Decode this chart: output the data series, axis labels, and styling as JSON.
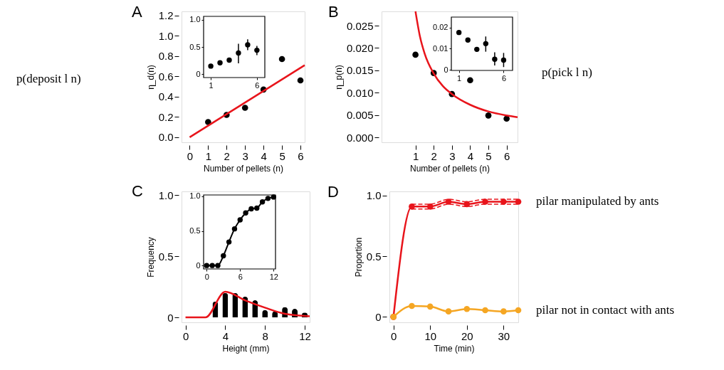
{
  "chart_data": [
    {
      "type": "scatter",
      "title": "A",
      "xlabel": "Number of pellets (n)",
      "ylabel": "η_d(n)",
      "xlim": [
        -0.44,
        6.23
      ],
      "ylim": [
        -0.05,
        1.24
      ],
      "xticks": [
        0,
        1,
        2,
        3,
        4,
        5,
        6
      ],
      "yticks": [
        {
          "value": 0,
          "label": "0.0"
        },
        0.2,
        0.4,
        0.6,
        0.8,
        {
          "value": 1,
          "label": "1.0"
        },
        1.2
      ],
      "annotations": [
        "p(deposit l n)"
      ],
      "series": [
        {
          "type": "scatter",
          "color": "#000000",
          "marker": "circle",
          "x": [
            1,
            2,
            3,
            4,
            5,
            6
          ],
          "values": [
            0.15,
            0.22,
            0.29,
            0.47,
            0.77,
            0.56
          ]
        },
        {
          "type": "line",
          "color": "#e8141b",
          "x": [
            0,
            6.23
          ],
          "values": [
            0,
            0.71
          ]
        }
      ]
    },
    {
      "type": "scatter",
      "xlim": [
        0.22,
        6.86
      ],
      "ylim": [
        -0.06,
        1.06
      ],
      "xticks": [
        1,
        6
      ],
      "yticks": [
        0,
        0.5,
        {
          "value": 1,
          "label": "1.0"
        }
      ],
      "series": [
        {
          "type": "scatter",
          "color": "#000000",
          "marker": "circle",
          "x": [
            1,
            2,
            3,
            4,
            5,
            6
          ],
          "values": [
            0.15,
            0.21,
            0.26,
            0.39,
            0.54,
            0.44
          ],
          "errors": [
            null,
            0.04,
            null,
            [
              0.2,
              0.56
            ],
            [
              0.44,
              0.64
            ],
            [
              0.35,
              0.52
            ]
          ]
        }
      ]
    },
    {
      "type": "scatter",
      "title": "B",
      "xlabel": "Number of pellets (n)",
      "ylabel": "η_p(n)",
      "xlim": [
        -0.86,
        6.6
      ],
      "ylim": [
        -0.0011,
        0.0282
      ],
      "xticks": [
        1,
        2,
        3,
        4,
        5,
        6
      ],
      "yticks": [
        {
          "value": 0,
          "label": "0.000"
        },
        {
          "value": 0.005,
          "label": "0.005"
        },
        {
          "value": 0.01,
          "label": "0.010"
        },
        {
          "value": 0.015,
          "label": "0.015"
        },
        {
          "value": 0.02,
          "label": "0.020"
        },
        {
          "value": 0.025,
          "label": "0.025"
        }
      ],
      "annotations": [
        "p(pick l n)"
      ],
      "series": [
        {
          "type": "scatter",
          "color": "#000000",
          "marker": "circle",
          "x": [
            1,
            2,
            3,
            4,
            5,
            6
          ],
          "values": [
            0.0185,
            0.0144,
            0.0097,
            0.0128,
            0.0049,
            0.0042
          ]
        },
        {
          "type": "line",
          "color": "#e8141b",
          "x": [
            1.0,
            1.25,
            1.5,
            2,
            2.5,
            3,
            4,
            5,
            6,
            6.6
          ],
          "values": [
            0.0282,
            0.0225,
            0.0188,
            0.0143,
            0.0115,
            0.0097,
            0.0073,
            0.0058,
            0.0049,
            0.0045
          ]
        }
      ]
    },
    {
      "type": "scatter",
      "xlim": [
        0.15,
        7.0
      ],
      "ylim": [
        -0.0003,
        0.025
      ],
      "xticks": [
        1,
        6
      ],
      "yticks": [
        0,
        0.01,
        0.02
      ],
      "series": [
        {
          "type": "scatter",
          "color": "#000000",
          "marker": "circle",
          "x": [
            1,
            2,
            3,
            4,
            5,
            6
          ],
          "values": [
            0.0177,
            0.0141,
            0.0097,
            0.0124,
            0.005,
            0.0046
          ],
          "errors": [
            0.001,
            0.001,
            0.001,
            [
              0.0086,
              0.0158
            ],
            [
              0.0021,
              0.0083
            ],
            [
              0.0013,
              0.008
            ]
          ]
        }
      ]
    },
    {
      "type": "bar",
      "title": "C",
      "xlabel": "Height (mm)",
      "ylabel": "Frequency",
      "xlim": [
        -0.4,
        12.5
      ],
      "ylim": [
        -0.04,
        1.03
      ],
      "xticks": [
        0,
        4,
        8,
        12
      ],
      "yticks": [
        0,
        0.5,
        {
          "value": 1,
          "label": "1.0"
        }
      ],
      "series": [
        {
          "type": "bar",
          "color": "#000000",
          "x": [
            0,
            1,
            2,
            3,
            4,
            5,
            6,
            7,
            8,
            9,
            10,
            11,
            12
          ],
          "values": [
            0,
            0,
            0,
            0.13,
            0.2,
            0.2,
            0.17,
            0.14,
            0.06,
            0.05,
            0.085,
            0.07,
            0.04
          ]
        },
        {
          "type": "line",
          "color": "#e8141b",
          "x": [
            0,
            2,
            4,
            6,
            8,
            10,
            12.5
          ],
          "values": [
            0,
            0,
            0.21,
            0.14,
            0.08,
            0.03,
            0.01
          ]
        }
      ]
    },
    {
      "type": "line",
      "marker": "circle",
      "xlim": [
        -0.55,
        12.35
      ],
      "ylim": [
        -0.05,
        1.02
      ],
      "xticks": [
        0,
        6,
        12
      ],
      "yticks": [
        0,
        0.5,
        {
          "value": 1,
          "label": "1.0"
        }
      ],
      "series": [
        {
          "color": "#000000",
          "x": [
            0,
            1,
            2,
            3,
            4,
            5,
            6,
            7,
            8,
            9,
            10,
            11,
            12
          ],
          "values": [
            0,
            0,
            0,
            0.14,
            0.34,
            0.53,
            0.66,
            0.76,
            0.82,
            0.83,
            0.92,
            0.97,
            0.99
          ]
        }
      ]
    },
    {
      "type": "line",
      "marker": "circle",
      "title": "D",
      "xlabel": "Time (min)",
      "ylabel": "Proportion",
      "xlim": [
        -1.1,
        34
      ],
      "ylim": [
        -0.045,
        1.035
      ],
      "xticks": [
        0,
        10,
        20,
        30
      ],
      "yticks": [
        0,
        0.5,
        {
          "value": 1,
          "label": "1.0"
        }
      ],
      "series": [
        {
          "type": "line",
          "marker": "none",
          "line_style": "dashed",
          "color": "#e8141b",
          "x": [
            5,
            10,
            15,
            20,
            25,
            30,
            34
          ],
          "values": [
            0.89,
            0.89,
            0.93,
            0.91,
            0.93,
            0.93,
            0.93
          ]
        },
        {
          "type": "line",
          "marker": "none",
          "line_style": "dashed",
          "color": "#e8141b",
          "x": [
            5,
            10,
            15,
            20,
            25,
            30,
            34
          ],
          "values": [
            0.93,
            0.93,
            0.97,
            0.95,
            0.97,
            0.97,
            0.97
          ]
        },
        {
          "name": "pilar manipulated by ants",
          "color": "#e8141b",
          "x": [
            0,
            5,
            10,
            15,
            20,
            25,
            30,
            34
          ],
          "values": [
            0,
            0.91,
            0.91,
            0.95,
            0.93,
            0.95,
            0.95,
            0.95
          ]
        },
        {
          "name": "pilar not in contact with ants",
          "color": "#f5a623",
          "x": [
            0,
            5,
            10,
            15,
            20,
            25,
            30,
            34
          ],
          "values": [
            0,
            0.09,
            0.085,
            0.045,
            0.065,
            0.055,
            0.045,
            0.055
          ]
        }
      ]
    }
  ]
}
